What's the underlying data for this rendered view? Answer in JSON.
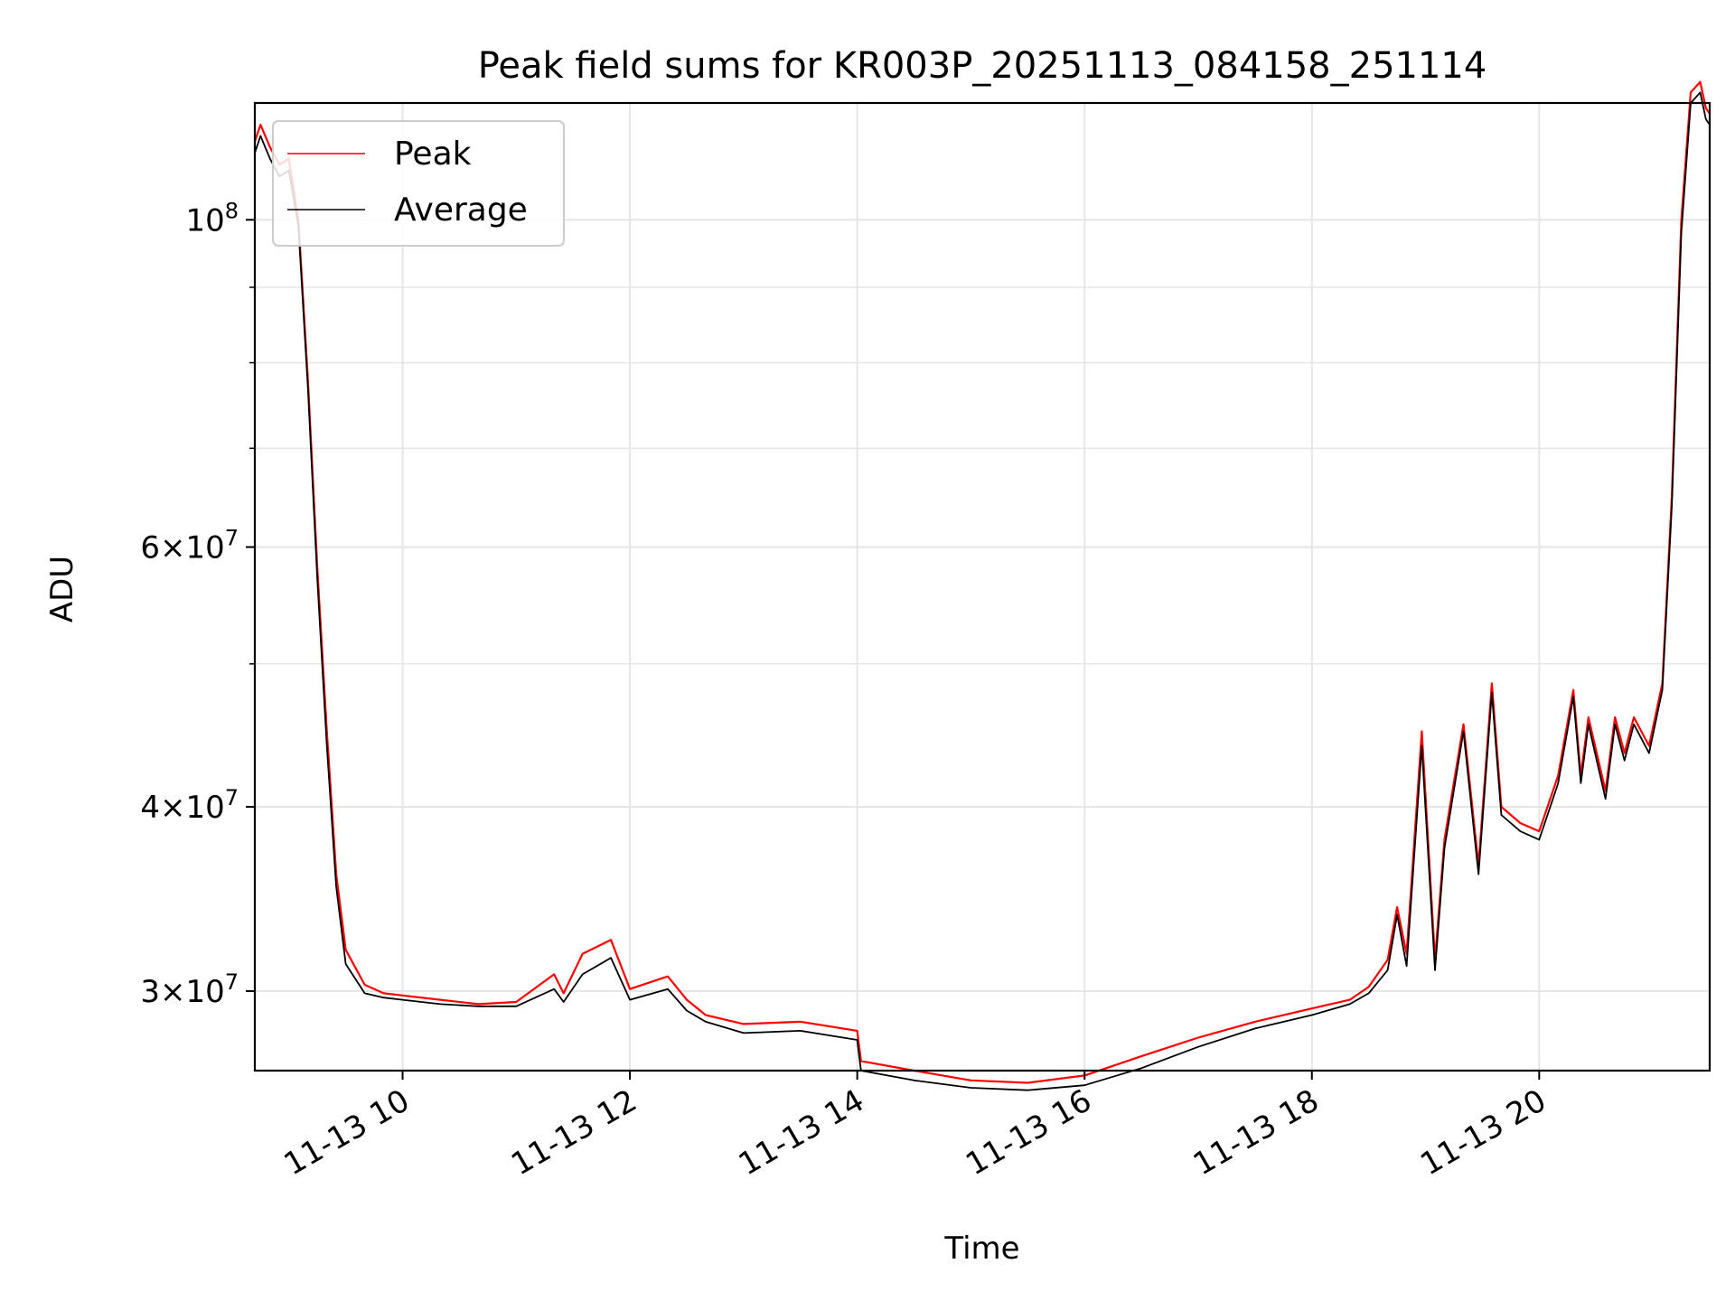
{
  "chart_data": {
    "type": "line",
    "title": "Peak field sums for KR003P_20251113_084158_251114",
    "xlabel": "Time",
    "ylabel": "ADU",
    "y_scale": "log",
    "grid": true,
    "legend_position": "top-left",
    "xlim": [
      "2025-11-13 08:42",
      "2025-11-13 21:30"
    ],
    "ylim": [
      26500000,
      120000000
    ],
    "x_ticks": [
      {
        "value": "2025-11-13 10:00",
        "label": "11-13 10"
      },
      {
        "value": "2025-11-13 12:00",
        "label": "11-13 12"
      },
      {
        "value": "2025-11-13 14:00",
        "label": "11-13 14"
      },
      {
        "value": "2025-11-13 16:00",
        "label": "11-13 16"
      },
      {
        "value": "2025-11-13 18:00",
        "label": "11-13 18"
      },
      {
        "value": "2025-11-13 20:00",
        "label": "11-13 20"
      }
    ],
    "y_ticks": [
      {
        "value": 30000000,
        "mant": "3",
        "exp": "7"
      },
      {
        "value": 40000000,
        "mant": "4",
        "exp": "7"
      },
      {
        "value": 60000000,
        "mant": "6",
        "exp": "7"
      },
      {
        "value": 100000000,
        "mant": "",
        "exp": "8"
      }
    ],
    "y_minor_ticks": [
      50000000,
      70000000,
      80000000,
      90000000
    ],
    "x": [
      "2025-11-13 08:42",
      "2025-11-13 08:45",
      "2025-11-13 08:50",
      "2025-11-13 08:55",
      "2025-11-13 09:00",
      "2025-11-13 09:05",
      "2025-11-13 09:10",
      "2025-11-13 09:15",
      "2025-11-13 09:20",
      "2025-11-13 09:25",
      "2025-11-13 09:30",
      "2025-11-13 09:40",
      "2025-11-13 09:50",
      "2025-11-13 10:00",
      "2025-11-13 10:20",
      "2025-11-13 10:40",
      "2025-11-13 11:00",
      "2025-11-13 11:20",
      "2025-11-13 11:25",
      "2025-11-13 11:35",
      "2025-11-13 11:50",
      "2025-11-13 12:00",
      "2025-11-13 12:20",
      "2025-11-13 12:30",
      "2025-11-13 12:40",
      "2025-11-13 13:00",
      "2025-11-13 13:30",
      "2025-11-13 14:00",
      "2025-11-13 14:02",
      "2025-11-13 14:30",
      "2025-11-13 15:00",
      "2025-11-13 15:30",
      "2025-11-13 16:00",
      "2025-11-13 16:30",
      "2025-11-13 17:00",
      "2025-11-13 17:30",
      "2025-11-13 18:00",
      "2025-11-13 18:20",
      "2025-11-13 18:30",
      "2025-11-13 18:40",
      "2025-11-13 18:45",
      "2025-11-13 18:50",
      "2025-11-13 18:58",
      "2025-11-13 19:05",
      "2025-11-13 19:10",
      "2025-11-13 19:20",
      "2025-11-13 19:28",
      "2025-11-13 19:35",
      "2025-11-13 19:40",
      "2025-11-13 19:50",
      "2025-11-13 20:00",
      "2025-11-13 20:10",
      "2025-11-13 20:18",
      "2025-11-13 20:22",
      "2025-11-13 20:26",
      "2025-11-13 20:35",
      "2025-11-13 20:40",
      "2025-11-13 20:45",
      "2025-11-13 20:50",
      "2025-11-13 20:58",
      "2025-11-13 21:05",
      "2025-11-13 21:10",
      "2025-11-13 21:15",
      "2025-11-13 21:20",
      "2025-11-13 21:25",
      "2025-11-13 21:28",
      "2025-11-13 21:30"
    ],
    "series": [
      {
        "name": "Peak",
        "color": "#ff0000",
        "values": [
          113000000,
          116000000,
          112000000,
          109000000,
          110000000,
          100000000,
          78000000,
          58000000,
          45000000,
          36000000,
          32000000,
          30300000,
          29900000,
          29800000,
          29600000,
          29400000,
          29500000,
          30800000,
          29900000,
          31800000,
          32500000,
          30100000,
          30700000,
          29600000,
          28900000,
          28500000,
          28600000,
          28200000,
          26900000,
          26500000,
          26100000,
          26000000,
          26300000,
          27100000,
          27900000,
          28600000,
          29200000,
          29600000,
          30200000,
          31500000,
          34200000,
          31800000,
          45000000,
          31500000,
          38000000,
          45500000,
          36500000,
          48500000,
          40000000,
          39000000,
          38500000,
          42000000,
          48000000,
          42000000,
          46000000,
          41000000,
          46000000,
          43500000,
          46000000,
          44000000,
          48500000,
          65000000,
          100000000,
          122000000,
          124000000,
          119000000,
          118000000
        ]
      },
      {
        "name": "Average",
        "color": "#000000",
        "values": [
          111000000,
          114000000,
          110000000,
          107000000,
          108000000,
          99000000,
          77000000,
          57000000,
          44000000,
          35300000,
          31300000,
          29900000,
          29700000,
          29600000,
          29400000,
          29300000,
          29300000,
          30100000,
          29500000,
          30800000,
          31600000,
          29600000,
          30100000,
          29100000,
          28600000,
          28100000,
          28200000,
          27800000,
          26500000,
          26100000,
          25800000,
          25700000,
          25900000,
          26600000,
          27500000,
          28300000,
          28900000,
          29400000,
          29900000,
          31000000,
          33800000,
          31200000,
          44000000,
          31000000,
          37500000,
          45000000,
          36000000,
          47800000,
          39500000,
          38500000,
          38000000,
          41500000,
          47500000,
          41500000,
          45500000,
          40500000,
          45500000,
          43000000,
          45500000,
          43500000,
          48000000,
          64000000,
          98000000,
          120000000,
          122000000,
          117000000,
          116000000
        ]
      }
    ]
  }
}
